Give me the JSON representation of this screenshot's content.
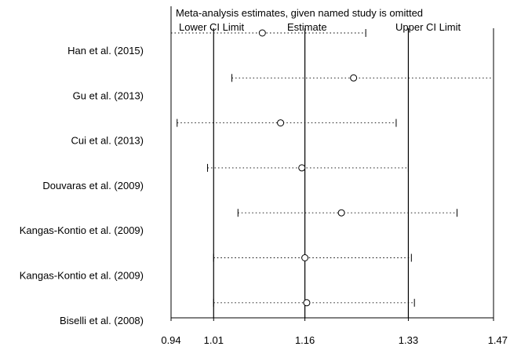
{
  "chart_data": {
    "type": "scatter",
    "title": "Meta-analysis estimates, given named study is omitted",
    "xlabel": "",
    "ylabel": "",
    "xlim": [
      0.94,
      1.47
    ],
    "xticks": [
      "0.94",
      "1.01",
      "1.16",
      "1.33",
      "1.47"
    ],
    "reference_lines": [
      {
        "label": "Lower CI Limit",
        "x": 1.01
      },
      {
        "label": "Estimate",
        "x": 1.16
      },
      {
        "label": "Upper CI Limit",
        "x": 1.33
      }
    ],
    "grid": false,
    "legend": "none",
    "studies": [
      {
        "name": "Han et al. (2015)",
        "lower": 0.94,
        "estimate": 1.09,
        "upper": 1.26
      },
      {
        "name": "Gu et al. (2013)",
        "lower": 1.04,
        "estimate": 1.24,
        "upper": 1.47
      },
      {
        "name": "Cui et al. (2013)",
        "lower": 0.95,
        "estimate": 1.12,
        "upper": 1.31
      },
      {
        "name": "Douvaras et al. (2009)",
        "lower": 1.0,
        "estimate": 1.155,
        "upper": 1.33
      },
      {
        "name": "Kangas-Kontio et al. (2009)",
        "lower": 1.05,
        "estimate": 1.22,
        "upper": 1.41
      },
      {
        "name": "Kangas-Kontio et al. (2009)",
        "lower": 1.01,
        "estimate": 1.16,
        "upper": 1.335
      },
      {
        "name": "Biselli et al. (2008)",
        "lower": 1.01,
        "estimate": 1.163,
        "upper": 1.34
      }
    ]
  }
}
